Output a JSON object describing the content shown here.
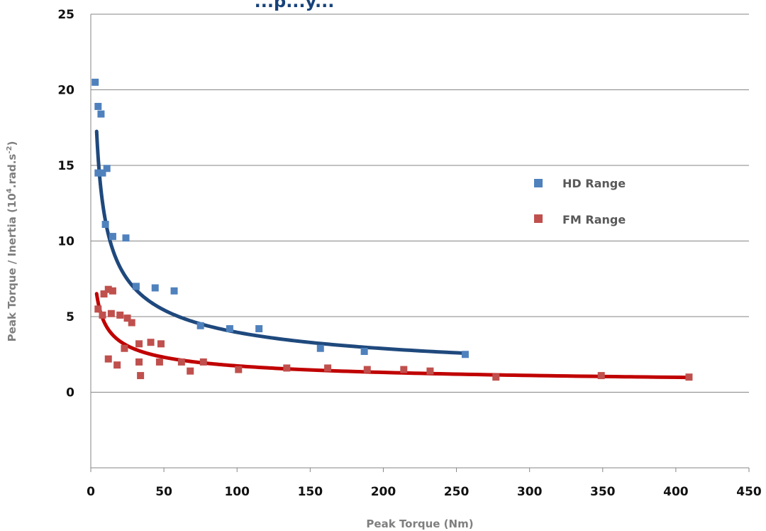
{
  "chart_data": {
    "type": "scatter",
    "title": "...p...y...",
    "xlabel": "Peak Torque (Nm)",
    "ylabel_main": "Peak Torque / Inertia (10",
    "ylabel_sup1": "4",
    "ylabel_mid": ".rad.s",
    "ylabel_sup2": "-2",
    "ylabel_end": ")",
    "xlim": [
      0,
      450
    ],
    "ylim": [
      -5,
      25
    ],
    "x_ticks": [
      0,
      50,
      100,
      150,
      200,
      250,
      300,
      350,
      400,
      450
    ],
    "y_ticks": [
      0,
      5,
      10,
      15,
      20,
      25
    ],
    "grid": "horizontal",
    "legend_position": "right",
    "series": [
      {
        "name": "HD Range",
        "color": "#4f81bd",
        "trend_color": "#1f497d",
        "points": [
          [
            3,
            20.5
          ],
          [
            5,
            18.9
          ],
          [
            5,
            14.5
          ],
          [
            7,
            18.4
          ],
          [
            8,
            14.5
          ],
          [
            10,
            11.1
          ],
          [
            11,
            14.8
          ],
          [
            15,
            10.3
          ],
          [
            24,
            10.2
          ],
          [
            31,
            7.0
          ],
          [
            44,
            6.9
          ],
          [
            57,
            6.7
          ],
          [
            75,
            4.4
          ],
          [
            95,
            4.2
          ],
          [
            115,
            4.2
          ],
          [
            157,
            2.9
          ],
          [
            187,
            2.7
          ],
          [
            256,
            2.5
          ]
        ],
        "trend": {
          "type": "power",
          "coefficient": 32.5,
          "exponent": -0.457,
          "x_range": [
            4,
            255
          ]
        }
      },
      {
        "name": "FM Range",
        "color": "#c0504d",
        "trend_color": "#c00000",
        "points": [
          [
            5,
            5.5
          ],
          [
            8,
            5.1
          ],
          [
            9,
            6.5
          ],
          [
            12,
            2.2
          ],
          [
            12,
            6.8
          ],
          [
            14,
            5.2
          ],
          [
            15,
            6.7
          ],
          [
            18,
            1.8
          ],
          [
            20,
            5.1
          ],
          [
            23,
            2.9
          ],
          [
            25,
            4.9
          ],
          [
            28,
            4.6
          ],
          [
            33,
            3.2
          ],
          [
            33,
            2.0
          ],
          [
            34,
            1.1
          ],
          [
            41,
            3.3
          ],
          [
            47,
            2.0
          ],
          [
            48,
            3.2
          ],
          [
            62,
            2.0
          ],
          [
            68,
            1.4
          ],
          [
            77,
            2.0
          ],
          [
            101,
            1.5
          ],
          [
            134,
            1.6
          ],
          [
            162,
            1.6
          ],
          [
            189,
            1.5
          ],
          [
            214,
            1.5
          ],
          [
            232,
            1.4
          ],
          [
            277,
            1.0
          ],
          [
            349,
            1.1
          ],
          [
            409,
            1.0
          ]
        ],
        "trend": {
          "type": "power",
          "coefficient": 11.5,
          "exponent": -0.41,
          "x_range": [
            4,
            410
          ]
        }
      }
    ]
  }
}
